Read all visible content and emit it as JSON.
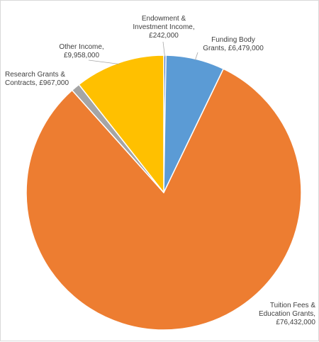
{
  "chart_data": {
    "type": "pie",
    "title": "",
    "slices": [
      {
        "label_lines": [
          "Endowment &",
          "Investment Income,",
          "£242,000"
        ],
        "value": 242000,
        "color": "#4472c4"
      },
      {
        "label_lines": [
          "Funding Body",
          "Grants, £6,479,000"
        ],
        "value": 6479000,
        "color": "#5b9bd5"
      },
      {
        "label_lines": [
          "Tuition Fees &",
          "Education Grants,",
          "£76,432,000"
        ],
        "value": 76432000,
        "color": "#ed7d31"
      },
      {
        "label_lines": [
          "Research Grants &",
          "Contracts, £967,000"
        ],
        "value": 967000,
        "color": "#a5a5a5"
      },
      {
        "label_lines": [
          "Other Income,",
          "£9,958,000"
        ],
        "value": 9958000,
        "color": "#ffc000"
      }
    ],
    "start_angle": "12 o'clock",
    "direction": "clockwise",
    "legend": "none",
    "leader_lines": true
  }
}
